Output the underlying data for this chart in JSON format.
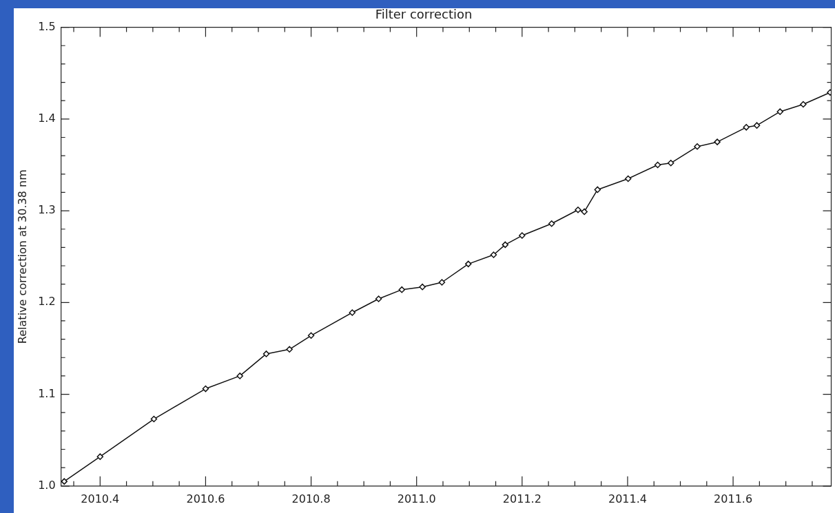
{
  "chart_data": {
    "type": "line",
    "title": "Filter correction",
    "ylabel": "Relative correction at 30.38 nm",
    "marker": "diamond",
    "line_style": "solid",
    "legend": false,
    "grid": false,
    "xlim": [
      2010.326,
      2011.786
    ],
    "ylim": [
      1.0,
      1.5
    ],
    "xticks": [
      {
        "value": 2010.35,
        "label": null
      },
      2010.4,
      {
        "value": 2010.45,
        "label": null
      },
      {
        "value": 2010.5,
        "label": null
      },
      {
        "value": 2010.55,
        "label": null
      },
      2010.6,
      {
        "value": 2010.65,
        "label": null
      },
      {
        "value": 2010.7,
        "label": null
      },
      {
        "value": 2010.75,
        "label": null
      },
      2010.8,
      {
        "value": 2010.85,
        "label": null
      },
      {
        "value": 2010.9,
        "label": null
      },
      {
        "value": 2010.95,
        "label": null
      },
      {
        "value": 2011.0,
        "label": "2011.0"
      },
      {
        "value": 2011.05,
        "label": null
      },
      {
        "value": 2011.1,
        "label": null
      },
      {
        "value": 2011.15,
        "label": null
      },
      2011.2,
      {
        "value": 2011.25,
        "label": null
      },
      {
        "value": 2011.3,
        "label": null
      },
      {
        "value": 2011.35,
        "label": null
      },
      2011.4,
      {
        "value": 2011.45,
        "label": null
      },
      {
        "value": 2011.5,
        "label": null
      },
      {
        "value": 2011.55,
        "label": null
      },
      2011.6,
      {
        "value": 2011.65,
        "label": null
      },
      {
        "value": 2011.7,
        "label": null
      },
      {
        "value": 2011.75,
        "label": null
      }
    ],
    "yticks": [
      {
        "value": 1.0,
        "label": "1.0"
      },
      {
        "value": 1.02,
        "label": null
      },
      {
        "value": 1.04,
        "label": null
      },
      {
        "value": 1.06,
        "label": null
      },
      {
        "value": 1.08,
        "label": null
      },
      1.1,
      {
        "value": 1.12,
        "label": null
      },
      {
        "value": 1.14,
        "label": null
      },
      {
        "value": 1.16,
        "label": null
      },
      {
        "value": 1.18,
        "label": null
      },
      1.2,
      {
        "value": 1.22,
        "label": null
      },
      {
        "value": 1.24,
        "label": null
      },
      {
        "value": 1.26,
        "label": null
      },
      {
        "value": 1.28,
        "label": null
      },
      1.3,
      {
        "value": 1.32,
        "label": null
      },
      {
        "value": 1.34,
        "label": null
      },
      {
        "value": 1.36,
        "label": null
      },
      {
        "value": 1.38,
        "label": null
      },
      1.4,
      {
        "value": 1.42,
        "label": null
      },
      {
        "value": 1.44,
        "label": null
      },
      {
        "value": 1.46,
        "label": null
      },
      {
        "value": 1.48,
        "label": null
      },
      1.5
    ],
    "series": [
      {
        "color": "#111111",
        "x": [
          2010.332,
          2010.4,
          2010.502,
          2010.6,
          2010.665,
          2010.715,
          2010.759,
          2010.8,
          2010.878,
          2010.928,
          2010.972,
          2011.011,
          2011.048,
          2011.098,
          2011.146,
          2011.168,
          2011.2,
          2011.256,
          2011.306,
          2011.318,
          2011.343,
          2011.401,
          2011.457,
          2011.482,
          2011.532,
          2011.57,
          2011.625,
          2011.645,
          2011.689,
          2011.733,
          2011.784
        ],
        "values": [
          1.005,
          1.032,
          1.073,
          1.106,
          1.12,
          1.144,
          1.149,
          1.164,
          1.189,
          1.204,
          1.214,
          1.217,
          1.222,
          1.242,
          1.252,
          1.263,
          1.273,
          1.286,
          1.301,
          1.299,
          1.323,
          1.335,
          1.35,
          1.352,
          1.37,
          1.375,
          1.391,
          1.393,
          1.408,
          1.416,
          1.429
        ]
      }
    ]
  }
}
